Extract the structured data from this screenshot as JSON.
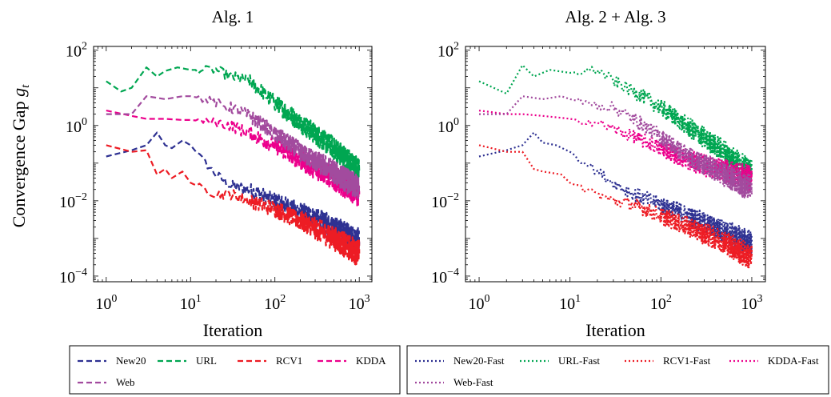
{
  "figure": {
    "ylabel_text": "Convergence Gap",
    "ylabel_sym": "g",
    "ylabel_sub": "t"
  },
  "chart_data": [
    {
      "type": "line",
      "title": "Alg. 1",
      "xlabel": "Iteration",
      "ylabel": "Convergence Gap g_t",
      "xscale": "log",
      "yscale": "log",
      "xlim": [
        1,
        1000
      ],
      "ylim": [
        0.0001,
        100
      ],
      "xticks": [
        {
          "base": "10",
          "exp": "0"
        },
        {
          "base": "10",
          "exp": "1"
        },
        {
          "base": "10",
          "exp": "2"
        },
        {
          "base": "10",
          "exp": "3"
        }
      ],
      "yticks": [
        {
          "base": "10",
          "exp": "2"
        },
        {
          "base": "10",
          "exp": "0"
        },
        {
          "base": "10",
          "exp": "−2"
        },
        {
          "base": "10",
          "exp": "−4"
        }
      ],
      "grid": false,
      "legend_position": "below",
      "series": [
        {
          "name": "New20",
          "color": "#2e3192",
          "dash": "dashed",
          "points": [
            [
              1,
              0.15
            ],
            [
              2,
              0.22
            ],
            [
              3,
              0.3
            ],
            [
              4,
              0.65
            ],
            [
              5,
              0.3
            ],
            [
              6,
              0.25
            ],
            [
              8,
              0.4
            ],
            [
              10,
              0.3
            ],
            [
              15,
              0.1
            ],
            [
              20,
              0.05
            ],
            [
              30,
              0.025
            ],
            [
              50,
              0.02
            ],
            [
              100,
              0.01
            ],
            [
              200,
              0.005
            ],
            [
              500,
              0.002
            ],
            [
              1000,
              0.0008
            ]
          ]
        },
        {
          "name": "URL",
          "color": "#00a651",
          "dash": "dashed",
          "points": [
            [
              1,
              15
            ],
            [
              1.5,
              8
            ],
            [
              2,
              10
            ],
            [
              3,
              35
            ],
            [
              4,
              20
            ],
            [
              5,
              28
            ],
            [
              7,
              35
            ],
            [
              10,
              30
            ],
            [
              20,
              30
            ],
            [
              30,
              20
            ],
            [
              50,
              15
            ],
            [
              100,
              4
            ],
            [
              200,
              1.2
            ],
            [
              500,
              0.25
            ],
            [
              1000,
              0.06
            ]
          ]
        },
        {
          "name": "RCV1",
          "color": "#ed1c24",
          "dash": "dashed",
          "points": [
            [
              1,
              0.3
            ],
            [
              2,
              0.2
            ],
            [
              3,
              0.22
            ],
            [
              4,
              0.05
            ],
            [
              5,
              0.07
            ],
            [
              6,
              0.04
            ],
            [
              8,
              0.06
            ],
            [
              10,
              0.03
            ],
            [
              15,
              0.02
            ],
            [
              20,
              0.015
            ],
            [
              30,
              0.015
            ],
            [
              50,
              0.01
            ],
            [
              100,
              0.006
            ],
            [
              200,
              0.003
            ],
            [
              500,
              0.001
            ],
            [
              1000,
              0.0004
            ]
          ]
        },
        {
          "name": "KDDA",
          "color": "#ec008c",
          "dash": "dashed",
          "points": [
            [
              1,
              2.5
            ],
            [
              2,
              1.8
            ],
            [
              3,
              1.5
            ],
            [
              5,
              1.5
            ],
            [
              8,
              1.4
            ],
            [
              10,
              1.4
            ],
            [
              20,
              1.2
            ],
            [
              30,
              1.0
            ],
            [
              50,
              0.6
            ],
            [
              100,
              0.3
            ],
            [
              200,
              0.12
            ],
            [
              500,
              0.04
            ],
            [
              1000,
              0.015
            ]
          ]
        },
        {
          "name": "Web",
          "color": "#a24b9e",
          "dash": "dashed",
          "points": [
            [
              1,
              2
            ],
            [
              2,
              2
            ],
            [
              3,
              6
            ],
            [
              5,
              5
            ],
            [
              8,
              6
            ],
            [
              10,
              6
            ],
            [
              15,
              5
            ],
            [
              20,
              4
            ],
            [
              30,
              3
            ],
            [
              50,
              1.8
            ],
            [
              100,
              0.6
            ],
            [
              200,
              0.2
            ],
            [
              500,
              0.06
            ],
            [
              1000,
              0.02
            ]
          ]
        }
      ]
    },
    {
      "type": "line",
      "title": "Alg. 2 + Alg. 3",
      "xlabel": "Iteration",
      "ylabel": "",
      "xscale": "log",
      "yscale": "log",
      "xlim": [
        1,
        1000
      ],
      "ylim": [
        0.0001,
        100
      ],
      "xticks": [
        {
          "base": "10",
          "exp": "0"
        },
        {
          "base": "10",
          "exp": "1"
        },
        {
          "base": "10",
          "exp": "2"
        },
        {
          "base": "10",
          "exp": "3"
        }
      ],
      "yticks": [
        {
          "base": "10",
          "exp": "2"
        },
        {
          "base": "10",
          "exp": "0"
        },
        {
          "base": "10",
          "exp": "−2"
        },
        {
          "base": "10",
          "exp": "−4"
        }
      ],
      "grid": false,
      "legend_position": "below",
      "series": [
        {
          "name": "New20-Fast",
          "color": "#2e3192",
          "dash": "dotted",
          "points": [
            [
              1,
              0.15
            ],
            [
              2,
              0.22
            ],
            [
              3,
              0.3
            ],
            [
              4,
              0.65
            ],
            [
              5,
              0.35
            ],
            [
              7,
              0.3
            ],
            [
              10,
              0.2
            ],
            [
              20,
              0.06
            ],
            [
              30,
              0.03
            ],
            [
              50,
              0.015
            ],
            [
              100,
              0.008
            ],
            [
              200,
              0.004
            ],
            [
              500,
              0.0015
            ],
            [
              1000,
              0.0007
            ]
          ]
        },
        {
          "name": "URL-Fast",
          "color": "#00a651",
          "dash": "dotted",
          "points": [
            [
              1,
              15
            ],
            [
              2,
              7
            ],
            [
              3,
              40
            ],
            [
              4,
              20
            ],
            [
              6,
              30
            ],
            [
              10,
              25
            ],
            [
              20,
              30
            ],
            [
              30,
              15
            ],
            [
              50,
              8
            ],
            [
              100,
              3
            ],
            [
              200,
              0.9
            ],
            [
              500,
              0.2
            ],
            [
              1000,
              0.05
            ]
          ]
        },
        {
          "name": "RCV1-Fast",
          "color": "#ed1c24",
          "dash": "dotted",
          "points": [
            [
              1,
              0.3
            ],
            [
              2,
              0.2
            ],
            [
              3,
              0.2
            ],
            [
              4,
              0.07
            ],
            [
              5,
              0.06
            ],
            [
              8,
              0.05
            ],
            [
              10,
              0.03
            ],
            [
              20,
              0.015
            ],
            [
              30,
              0.01
            ],
            [
              50,
              0.008
            ],
            [
              100,
              0.004
            ],
            [
              200,
              0.002
            ],
            [
              500,
              0.0008
            ],
            [
              1000,
              0.0003
            ]
          ]
        },
        {
          "name": "KDDA-Fast",
          "color": "#ec008c",
          "dash": "dotted",
          "points": [
            [
              1,
              2.5
            ],
            [
              2,
              2
            ],
            [
              3,
              2
            ],
            [
              5,
              1.8
            ],
            [
              8,
              1.6
            ],
            [
              10,
              1.5
            ],
            [
              20,
              1.2
            ],
            [
              30,
              0.8
            ],
            [
              50,
              0.5
            ],
            [
              100,
              0.25
            ],
            [
              200,
              0.12
            ],
            [
              500,
              0.06
            ],
            [
              1000,
              0.04
            ]
          ]
        },
        {
          "name": "Web-Fast",
          "color": "#a24b9e",
          "dash": "dotted",
          "points": [
            [
              1,
              2
            ],
            [
              2,
              2
            ],
            [
              3,
              6
            ],
            [
              5,
              5
            ],
            [
              8,
              6
            ],
            [
              10,
              5
            ],
            [
              15,
              4
            ],
            [
              20,
              3.5
            ],
            [
              30,
              3
            ],
            [
              50,
              1.5
            ],
            [
              100,
              0.5
            ],
            [
              200,
              0.15
            ],
            [
              500,
              0.05
            ],
            [
              1000,
              0.02
            ]
          ]
        }
      ]
    }
  ]
}
